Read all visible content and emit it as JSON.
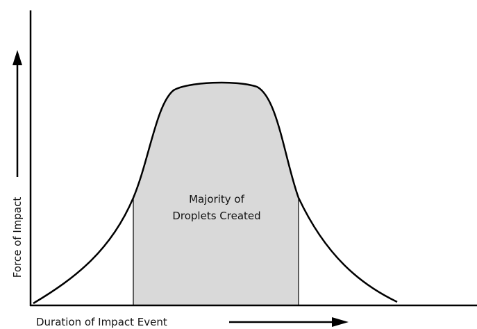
{
  "axes": {
    "y_label": "Force of Impact",
    "x_label": "Duration of Impact Event"
  },
  "annotation": {
    "lines": [
      "Majority of",
      "Droplets Created"
    ]
  }
}
